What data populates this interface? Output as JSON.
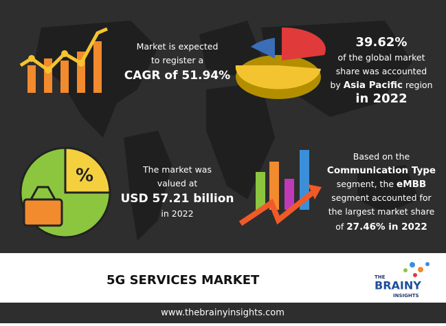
{
  "blocks": [
    {
      "lines": [
        [
          {
            "text": "Market is expected",
            "bold": false
          }
        ],
        [
          {
            "text": "to register a",
            "bold": false
          }
        ],
        [
          {
            "text": "CAGR of 51.94%",
            "bold": true
          }
        ]
      ]
    },
    {
      "lines": [
        [
          {
            "text": "39.62%",
            "bold": true
          }
        ],
        [
          {
            "text": "of the global market",
            "bold": false
          }
        ],
        [
          {
            "text": "share was accounted",
            "bold": false
          }
        ],
        [
          {
            "text": "by ",
            "bold": false
          },
          {
            "text": "Asia Pacific",
            "bold": true
          },
          {
            "text": " region",
            "bold": false
          }
        ],
        [
          {
            "text": "in 2022",
            "bold": true
          }
        ]
      ]
    },
    {
      "lines": [
        [
          {
            "text": "The market was",
            "bold": false
          }
        ],
        [
          {
            "text": "valued at",
            "bold": false
          }
        ],
        [
          {
            "text": "USD 57.21 billion",
            "bold": true
          }
        ],
        [
          {
            "text": "in 2022",
            "bold": false
          }
        ]
      ]
    },
    {
      "lines": [
        [
          {
            "text": "Based on the",
            "bold": false
          }
        ],
        [
          {
            "text": "Communication Type",
            "bold": true
          }
        ],
        [
          {
            "text": "segment, the ",
            "bold": false
          },
          {
            "text": "eMBB",
            "bold": true
          }
        ],
        [
          {
            "text": "segment accounted for",
            "bold": false
          }
        ],
        [
          {
            "text": "the largest market share",
            "bold": false
          }
        ],
        [
          {
            "text": "of ",
            "bold": false
          },
          {
            "text": "27.46%",
            "bold": true
          },
          {
            "text": " in 2022",
            "bold": true
          }
        ]
      ]
    }
  ],
  "icon_text": "%",
  "title": "5G SERVICES MARKET",
  "logo": {
    "top": "THE",
    "main": "BRAINY",
    "bottom": "INSIGHTS"
  },
  "footer": "www.thebrainyinsights.com"
}
